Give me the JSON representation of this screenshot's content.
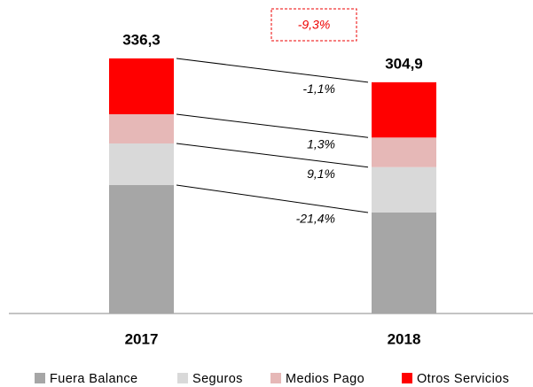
{
  "chart_data": {
    "type": "stacked_bar",
    "categories": [
      "2017",
      "2018"
    ],
    "series": [
      {
        "name": "Fuera Balance",
        "color": "#a6a6a6",
        "values": [
          169.3,
          133.1
        ],
        "change": "-21,4%"
      },
      {
        "name": "Seguros",
        "color": "#d9d9d9",
        "values": [
          54.9,
          59.9
        ],
        "change": "9,1%"
      },
      {
        "name": "Medios Pago",
        "color": "#e6b8b7",
        "values": [
          38.5,
          39.0
        ],
        "change": "1,3%"
      },
      {
        "name": "Otros Servicios",
        "color": "#ff0000",
        "values": [
          73.6,
          72.9
        ],
        "change": "-1,1%"
      }
    ],
    "totals": [
      336.3,
      304.9
    ],
    "value_labels": [
      "336,3",
      "304,9"
    ],
    "total_change": "-9,3%",
    "ylim": [
      0,
      340
    ],
    "legend": "bottom"
  }
}
